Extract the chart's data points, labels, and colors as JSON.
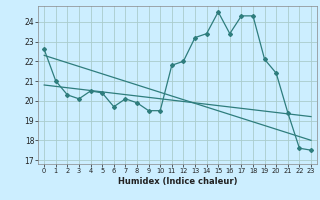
{
  "xlabel": "Humidex (Indice chaleur)",
  "bg_color": "#cceeff",
  "grid_color": "#aacccc",
  "line_color": "#2e7d7d",
  "xlim": [
    -0.5,
    23.5
  ],
  "ylim": [
    16.8,
    24.8
  ],
  "yticks": [
    17,
    18,
    19,
    20,
    21,
    22,
    23,
    24
  ],
  "xticks": [
    0,
    1,
    2,
    3,
    4,
    5,
    6,
    7,
    8,
    9,
    10,
    11,
    12,
    13,
    14,
    15,
    16,
    17,
    18,
    19,
    20,
    21,
    22,
    23
  ],
  "line1_x": [
    0,
    1,
    2,
    3,
    4,
    5,
    6,
    7,
    8,
    9,
    10,
    11,
    12,
    13,
    14,
    15,
    16,
    17,
    18,
    19,
    20,
    21,
    22,
    23
  ],
  "line1_y": [
    22.6,
    21.0,
    20.3,
    20.1,
    20.5,
    20.4,
    19.7,
    20.1,
    19.9,
    19.5,
    19.5,
    21.8,
    22.0,
    23.2,
    23.4,
    24.5,
    23.4,
    24.3,
    24.3,
    22.1,
    21.4,
    19.4,
    17.6,
    17.5
  ],
  "line2_x": [
    0,
    23
  ],
  "line2_y": [
    22.3,
    18.0
  ],
  "line3_x": [
    0,
    23
  ],
  "line3_y": [
    20.8,
    19.2
  ],
  "marker_x": [
    0,
    1,
    2,
    3,
    4,
    5,
    6,
    7,
    8,
    9,
    10,
    11,
    12,
    13,
    14,
    15,
    16,
    17,
    18,
    19,
    20,
    21,
    22,
    23
  ],
  "marker_y": [
    22.6,
    21.0,
    20.3,
    20.1,
    20.5,
    20.4,
    19.7,
    20.1,
    19.9,
    19.5,
    19.5,
    21.8,
    22.0,
    23.2,
    23.4,
    24.5,
    23.4,
    24.3,
    24.3,
    22.1,
    21.4,
    19.4,
    17.6,
    17.5
  ]
}
